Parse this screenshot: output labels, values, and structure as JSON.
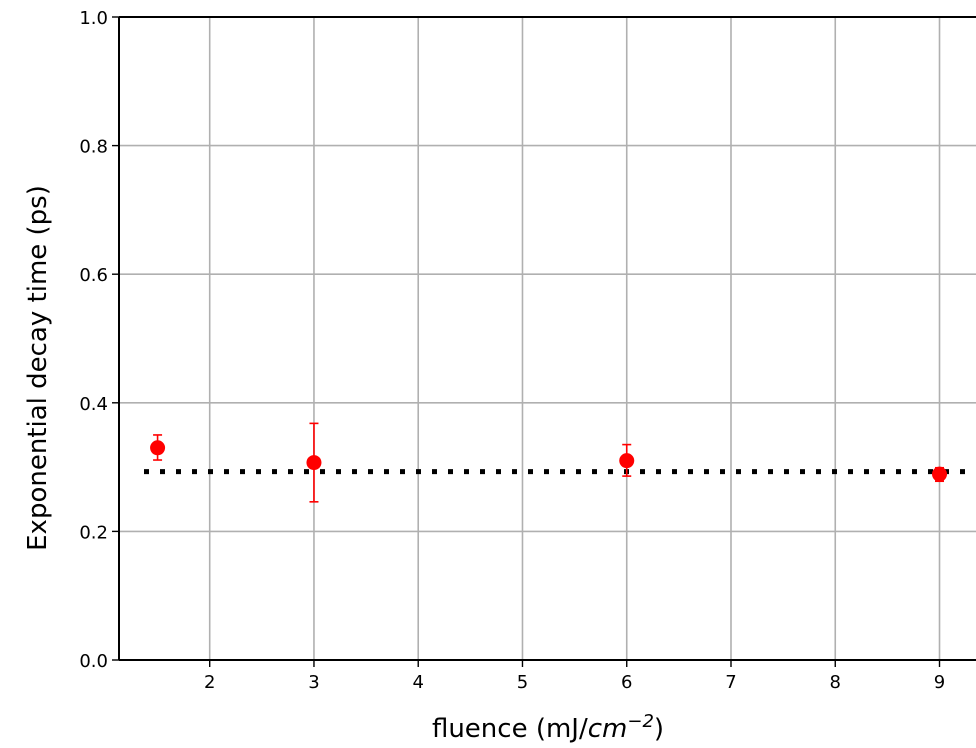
{
  "chart_data": {
    "type": "scatter",
    "title": "",
    "xlabel": "fluence (mJ/",
    "xlabel_math": "cm",
    "xlabel_exponent": "−2",
    "xlabel_suffix": ")",
    "ylabel": "Exponential decay time (ps)",
    "xlim": [
      1.13,
      9.35
    ],
    "ylim": [
      0.0,
      1.0
    ],
    "x_ticks": [
      2,
      3,
      4,
      5,
      6,
      7,
      8,
      9
    ],
    "y_ticks": [
      0.0,
      0.2,
      0.4,
      0.6,
      0.8,
      1.0
    ],
    "y_tick_labels": [
      "0.0",
      "0.2",
      "0.4",
      "0.6",
      "0.8",
      "1.0"
    ],
    "grid": true,
    "series": [
      {
        "marker_color": "#ff0000",
        "points": [
          {
            "x": 1.5,
            "y": 0.33,
            "yerr_low": 0.311,
            "yerr_high": 0.35
          },
          {
            "x": 3.0,
            "y": 0.307,
            "yerr_low": 0.246,
            "yerr_high": 0.368
          },
          {
            "x": 6.0,
            "y": 0.31,
            "yerr_low": 0.286,
            "yerr_high": 0.335
          },
          {
            "x": 9.0,
            "y": 0.289,
            "yerr_low": 0.278,
            "yerr_high": 0.299
          }
        ]
      }
    ],
    "reference_line": {
      "y": 0.293,
      "style": "dotted",
      "color": "#000000"
    },
    "colors": {
      "grid": "#b0b0b0",
      "axis": "#000000",
      "points": "#ff0000"
    }
  }
}
